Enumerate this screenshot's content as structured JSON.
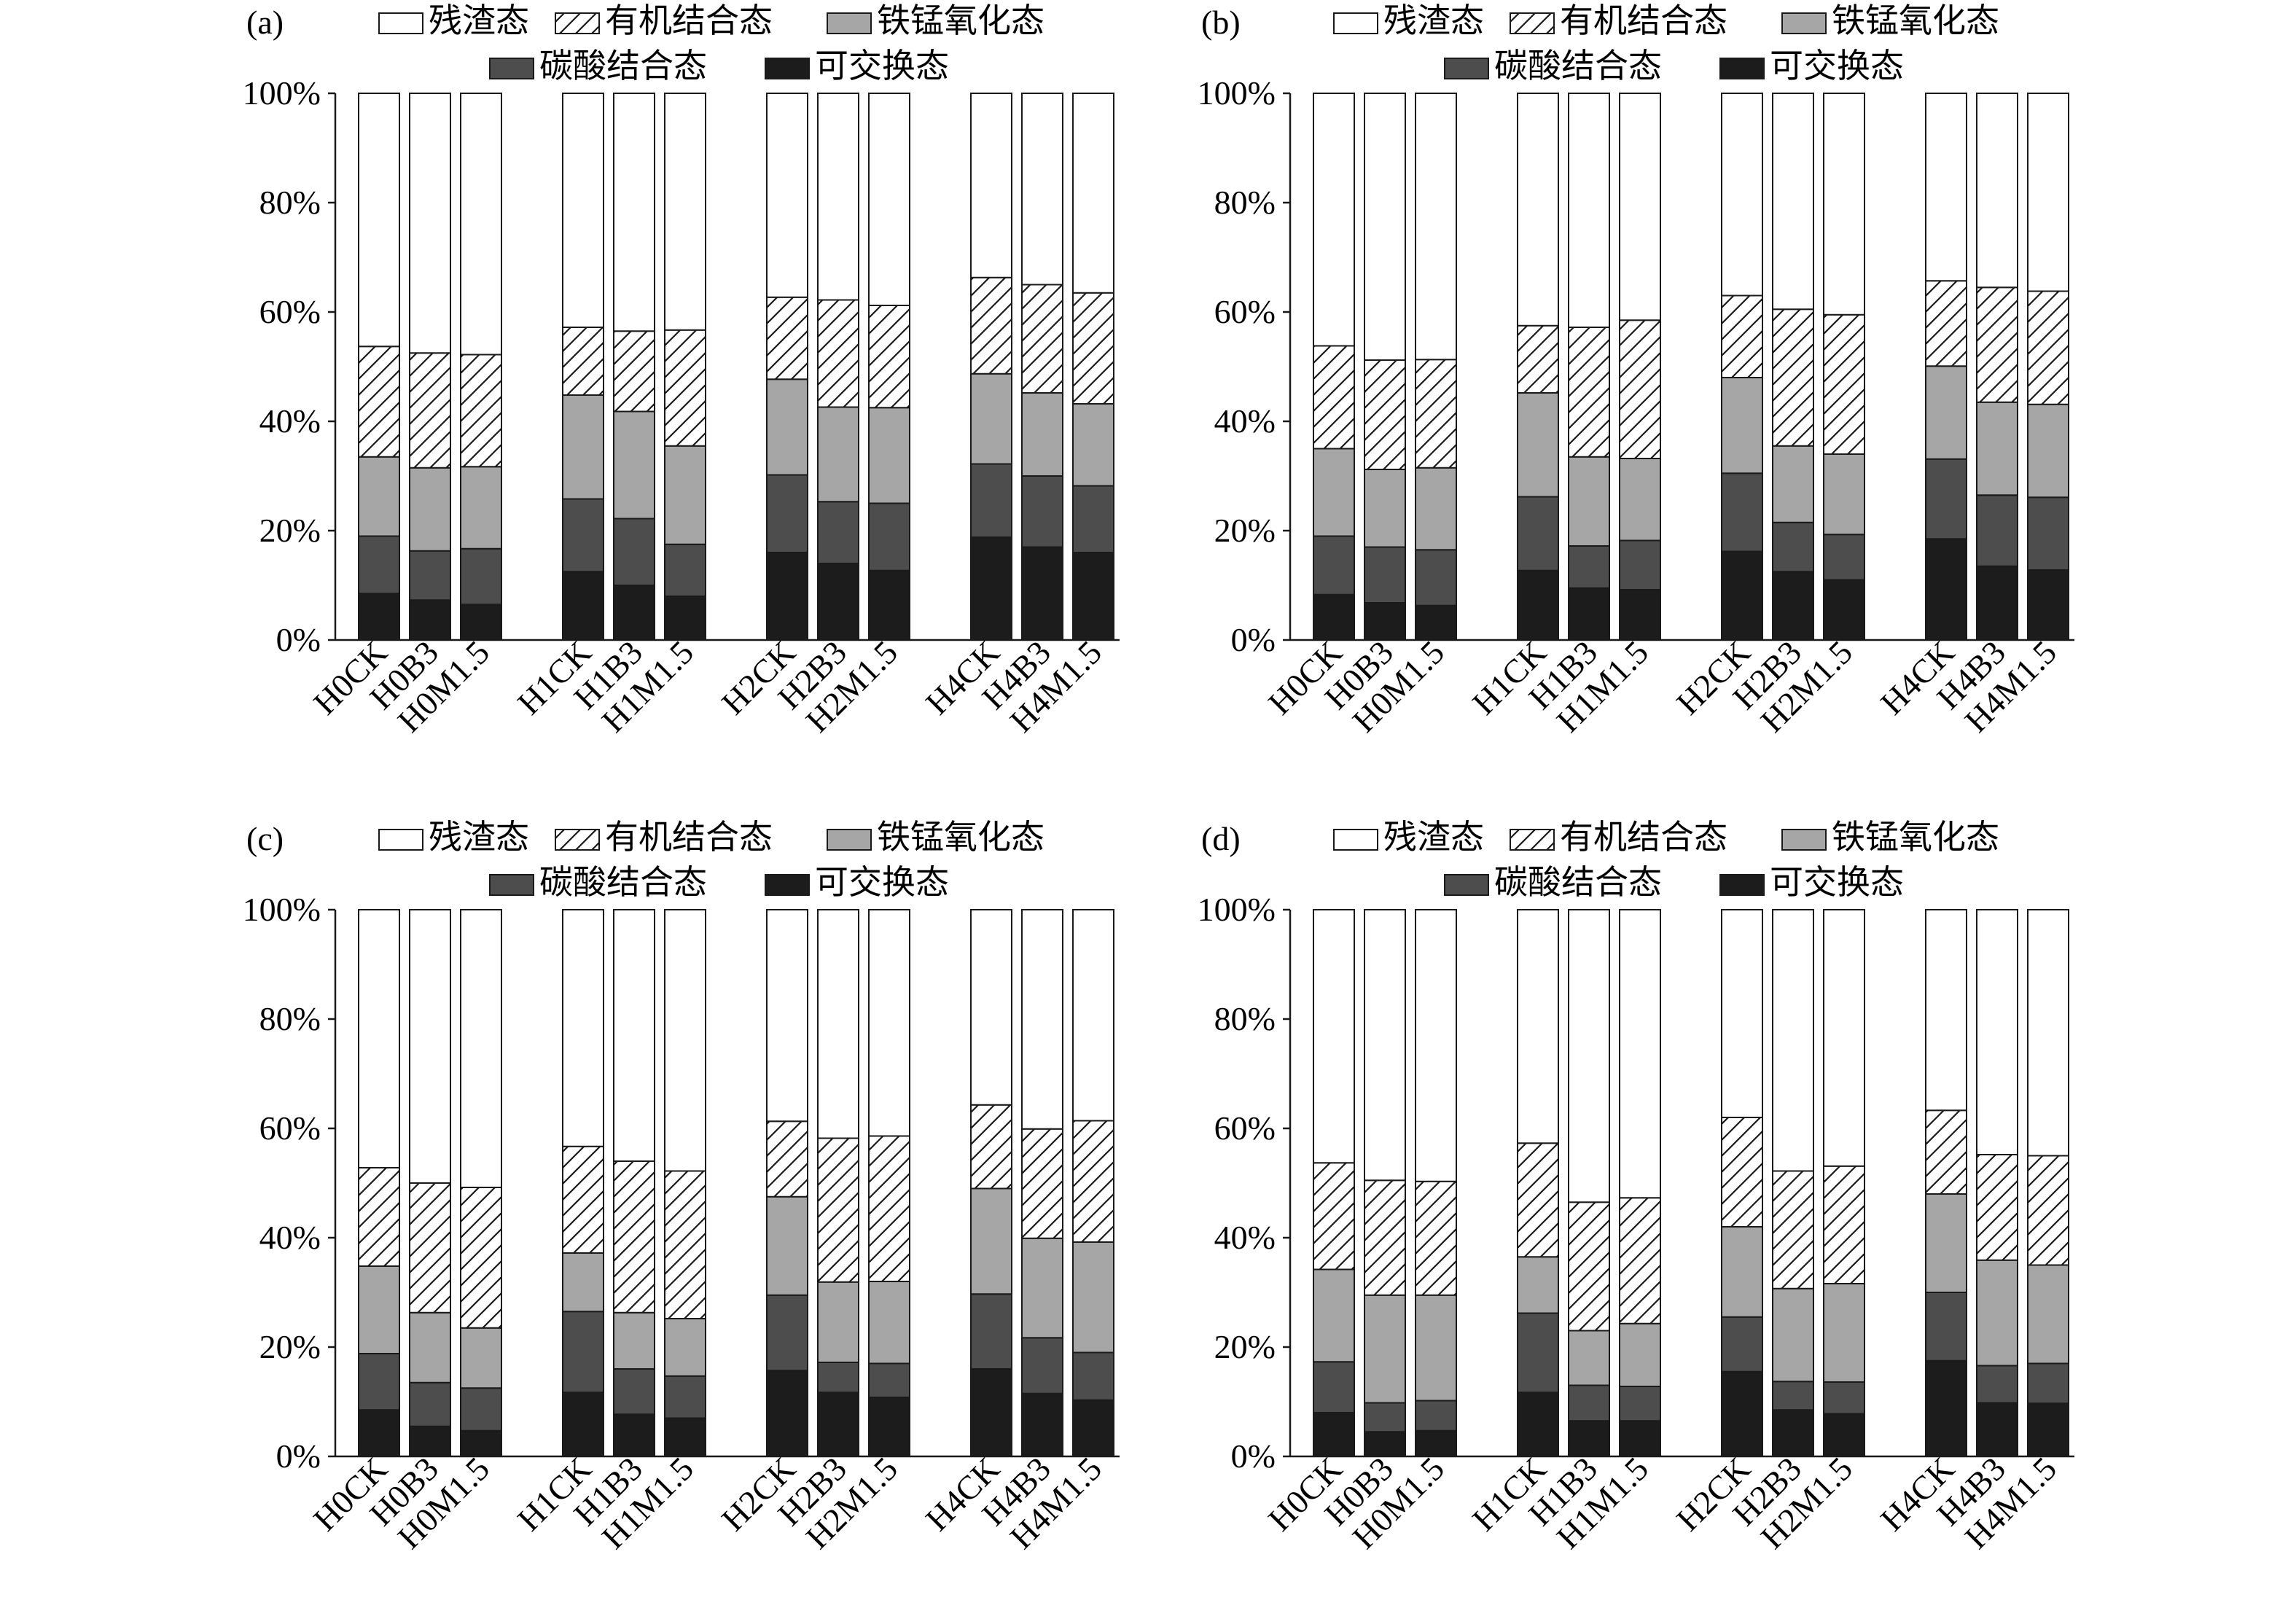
{
  "chart_data": [
    {
      "panel_label": "(a)",
      "type": "bar",
      "stacked": true,
      "categories": [
        "H0CK",
        "H0B3",
        "H0M1.5",
        "H1CK",
        "H1B3",
        "H1M1.5",
        "H2CK",
        "H2B3",
        "H2M1.5",
        "H4CK",
        "H4B3",
        "H4M1.5"
      ],
      "ylim": [
        0,
        100
      ],
      "yticks": [
        "0%",
        "20%",
        "40%",
        "60%",
        "80%",
        "100%"
      ],
      "series": [
        {
          "name": "可交换态",
          "values": [
            8.5,
            7.3,
            6.5,
            12.5,
            10.0,
            8.0,
            16.0,
            14.0,
            12.7,
            18.8,
            17.0,
            16.0
          ]
        },
        {
          "name": "碳酸结合态",
          "values": [
            10.5,
            9.0,
            10.2,
            13.3,
            12.2,
            9.5,
            14.2,
            11.3,
            12.3,
            13.4,
            13.0,
            12.2
          ]
        },
        {
          "name": "铁锰氧化态",
          "values": [
            14.5,
            15.2,
            15.0,
            19.0,
            19.6,
            18.0,
            17.5,
            17.3,
            17.5,
            16.5,
            15.2,
            15.0
          ]
        },
        {
          "name": "有机结合态",
          "values": [
            20.2,
            21.0,
            20.5,
            12.4,
            14.7,
            21.2,
            15.0,
            19.6,
            18.7,
            17.6,
            19.8,
            20.3
          ]
        },
        {
          "name": "残渣态",
          "values": [
            46.3,
            47.5,
            47.8,
            42.8,
            43.5,
            43.3,
            37.3,
            37.8,
            38.8,
            33.7,
            35.0,
            36.5
          ]
        }
      ]
    },
    {
      "panel_label": "(b)",
      "type": "bar",
      "stacked": true,
      "categories": [
        "H0CK",
        "H0B3",
        "H0M1.5",
        "H1CK",
        "H1B3",
        "H1M1.5",
        "H2CK",
        "H2B3",
        "H2M1.5",
        "H4CK",
        "H4B3",
        "H4M1.5"
      ],
      "ylim": [
        0,
        100
      ],
      "yticks": [
        "0%",
        "20%",
        "40%",
        "60%",
        "80%",
        "100%"
      ],
      "series": [
        {
          "name": "可交换态",
          "values": [
            8.3,
            6.8,
            6.3,
            12.7,
            9.5,
            9.2,
            16.2,
            12.5,
            11.0,
            18.5,
            13.5,
            12.8
          ]
        },
        {
          "name": "碳酸结合态",
          "values": [
            10.7,
            10.2,
            10.2,
            13.5,
            7.7,
            9.0,
            14.3,
            9.0,
            8.3,
            14.6,
            13.0,
            13.3
          ]
        },
        {
          "name": "铁锰氧化态",
          "values": [
            16.0,
            14.2,
            15.0,
            19.0,
            16.3,
            15.0,
            17.5,
            14.0,
            14.7,
            17.0,
            17.0,
            17.0
          ]
        },
        {
          "name": "有机结合态",
          "values": [
            18.8,
            20.0,
            19.8,
            12.3,
            23.7,
            25.3,
            15.0,
            25.0,
            25.5,
            15.6,
            21.0,
            20.7
          ]
        },
        {
          "name": "残渣态",
          "values": [
            46.2,
            48.8,
            48.7,
            42.5,
            42.8,
            41.5,
            37.0,
            39.5,
            40.5,
            34.3,
            35.5,
            36.2
          ]
        }
      ]
    },
    {
      "panel_label": "(c)",
      "type": "bar",
      "stacked": true,
      "categories": [
        "H0CK",
        "H0B3",
        "H0M1.5",
        "H1CK",
        "H1B3",
        "H1M1.5",
        "H2CK",
        "H2B3",
        "H2M1.5",
        "H4CK",
        "H4B3",
        "H4M1.5"
      ],
      "ylim": [
        0,
        100
      ],
      "yticks": [
        "0%",
        "20%",
        "40%",
        "60%",
        "80%",
        "100%"
      ],
      "series": [
        {
          "name": "可交换态",
          "values": [
            8.5,
            5.5,
            4.7,
            11.7,
            7.7,
            7.0,
            15.7,
            11.7,
            10.8,
            16.0,
            11.5,
            10.3
          ]
        },
        {
          "name": "碳酸结合态",
          "values": [
            10.3,
            8.0,
            7.8,
            14.8,
            8.3,
            7.7,
            13.8,
            5.5,
            6.2,
            13.7,
            10.2,
            8.7
          ]
        },
        {
          "name": "铁锰氧化态",
          "values": [
            16.0,
            12.8,
            11.0,
            10.7,
            10.3,
            10.5,
            18.0,
            14.7,
            15.0,
            19.3,
            18.2,
            20.2
          ]
        },
        {
          "name": "有机结合态",
          "values": [
            18.0,
            23.7,
            25.7,
            19.5,
            27.7,
            27.0,
            13.8,
            26.3,
            26.6,
            15.3,
            20.0,
            22.2
          ]
        },
        {
          "name": "残渣态",
          "values": [
            47.2,
            50.0,
            50.8,
            43.3,
            46.0,
            47.8,
            38.7,
            41.8,
            41.4,
            35.7,
            40.1,
            38.6
          ]
        }
      ]
    },
    {
      "panel_label": "(d)",
      "type": "bar",
      "stacked": true,
      "categories": [
        "H0CK",
        "H0B3",
        "H0M1.5",
        "H1CK",
        "H1B3",
        "H1M1.5",
        "H2CK",
        "H2B3",
        "H2M1.5",
        "H4CK",
        "H4B3",
        "H4M1.5"
      ],
      "ylim": [
        0,
        100
      ],
      "yticks": [
        "0%",
        "20%",
        "40%",
        "60%",
        "80%",
        "100%"
      ],
      "series": [
        {
          "name": "可交换态",
          "values": [
            8.0,
            4.5,
            4.7,
            11.7,
            6.5,
            6.5,
            15.5,
            8.5,
            7.8,
            17.5,
            9.8,
            9.7
          ]
        },
        {
          "name": "碳酸结合态",
          "values": [
            9.3,
            5.3,
            5.5,
            14.5,
            6.5,
            6.3,
            10.0,
            5.2,
            5.8,
            12.5,
            6.8,
            7.3
          ]
        },
        {
          "name": "铁锰氧化态",
          "values": [
            16.9,
            19.7,
            19.3,
            10.3,
            10.0,
            11.5,
            16.5,
            17.0,
            18.0,
            18.0,
            19.3,
            18.0
          ]
        },
        {
          "name": "有机结合态",
          "values": [
            19.5,
            21.0,
            20.8,
            20.8,
            23.5,
            23.0,
            20.0,
            21.5,
            21.5,
            15.3,
            19.3,
            20.0
          ]
        },
        {
          "name": "残渣态",
          "values": [
            46.3,
            49.5,
            49.7,
            42.7,
            53.5,
            52.7,
            38.0,
            47.8,
            46.9,
            36.7,
            44.8,
            45.0
          ]
        }
      ]
    }
  ],
  "legend": {
    "items": [
      {
        "label": "残渣态",
        "style": "white"
      },
      {
        "label": "有机结合态",
        "style": "hatch"
      },
      {
        "label": "铁锰氧化态",
        "style": "lightgray"
      },
      {
        "label": "碳酸结合态",
        "style": "darkgray"
      },
      {
        "label": "可交换态",
        "style": "black"
      }
    ]
  },
  "colors": {
    "residual": "#ffffff",
    "organic": "#ffffff",
    "femn": "#a6a6a6",
    "carbonate": "#4d4d4d",
    "exchangeable": "#1c1c1c",
    "stroke": "#1a1a1a"
  }
}
